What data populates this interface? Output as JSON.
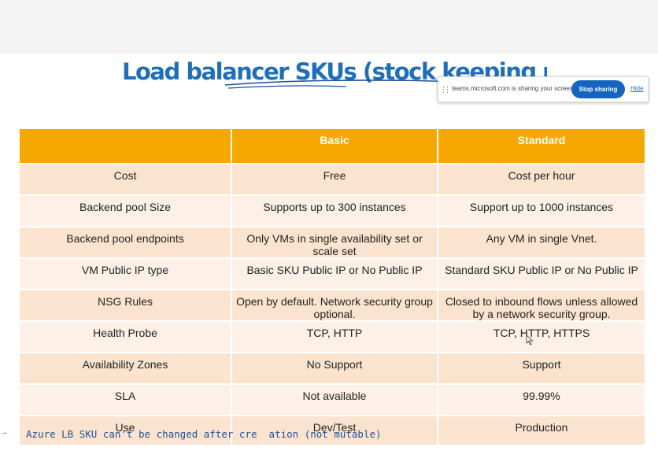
{
  "title": "Load balancer SKUs (stock keeping unit)",
  "screen_share": {
    "message": "teams.microsoft.com is sharing your screen.",
    "stop_label": "Stop sharing",
    "hide_label": "Hide"
  },
  "table": {
    "headers": [
      "",
      "Basic",
      "Standard"
    ],
    "rows": [
      {
        "feature": "Cost",
        "basic": "Free",
        "standard": "Cost per hour"
      },
      {
        "feature": "Backend pool Size",
        "basic": "Supports up to 300 instances",
        "standard": "Support up to 1000 instances"
      },
      {
        "feature": "Backend pool endpoints",
        "basic": "Only VMs in single availability set or scale set",
        "standard": "Any VM in single Vnet."
      },
      {
        "feature": "VM Public IP type",
        "basic": "Basic SKU Public IP or No Public IP",
        "standard": "Standard SKU Public IP or No Public IP"
      },
      {
        "feature": "NSG Rules",
        "basic": "Open by default. Network security group optional.",
        "standard": "Closed to inbound flows unless allowed by a network security group."
      },
      {
        "feature": "Health Probe",
        "basic": "TCP, HTTP",
        "standard": "TCP, HTTP, HTTPS"
      },
      {
        "feature": "Availability Zones",
        "basic": "No Support",
        "standard": "Support"
      },
      {
        "feature": "SLA",
        "basic": "Not available",
        "standard": "99.99%"
      },
      {
        "feature": "Use",
        "basic": "Dev/Test",
        "standard": "Production"
      }
    ]
  },
  "annotation": "Azure LB SKU can't be changed after cre  ation (not mutable)",
  "colors": {
    "title": "#1f6fb8",
    "header": "#f5a800",
    "row_dark": "#fbe4cf",
    "row_light": "#fdf0e7",
    "stop_button": "#1565c0"
  }
}
